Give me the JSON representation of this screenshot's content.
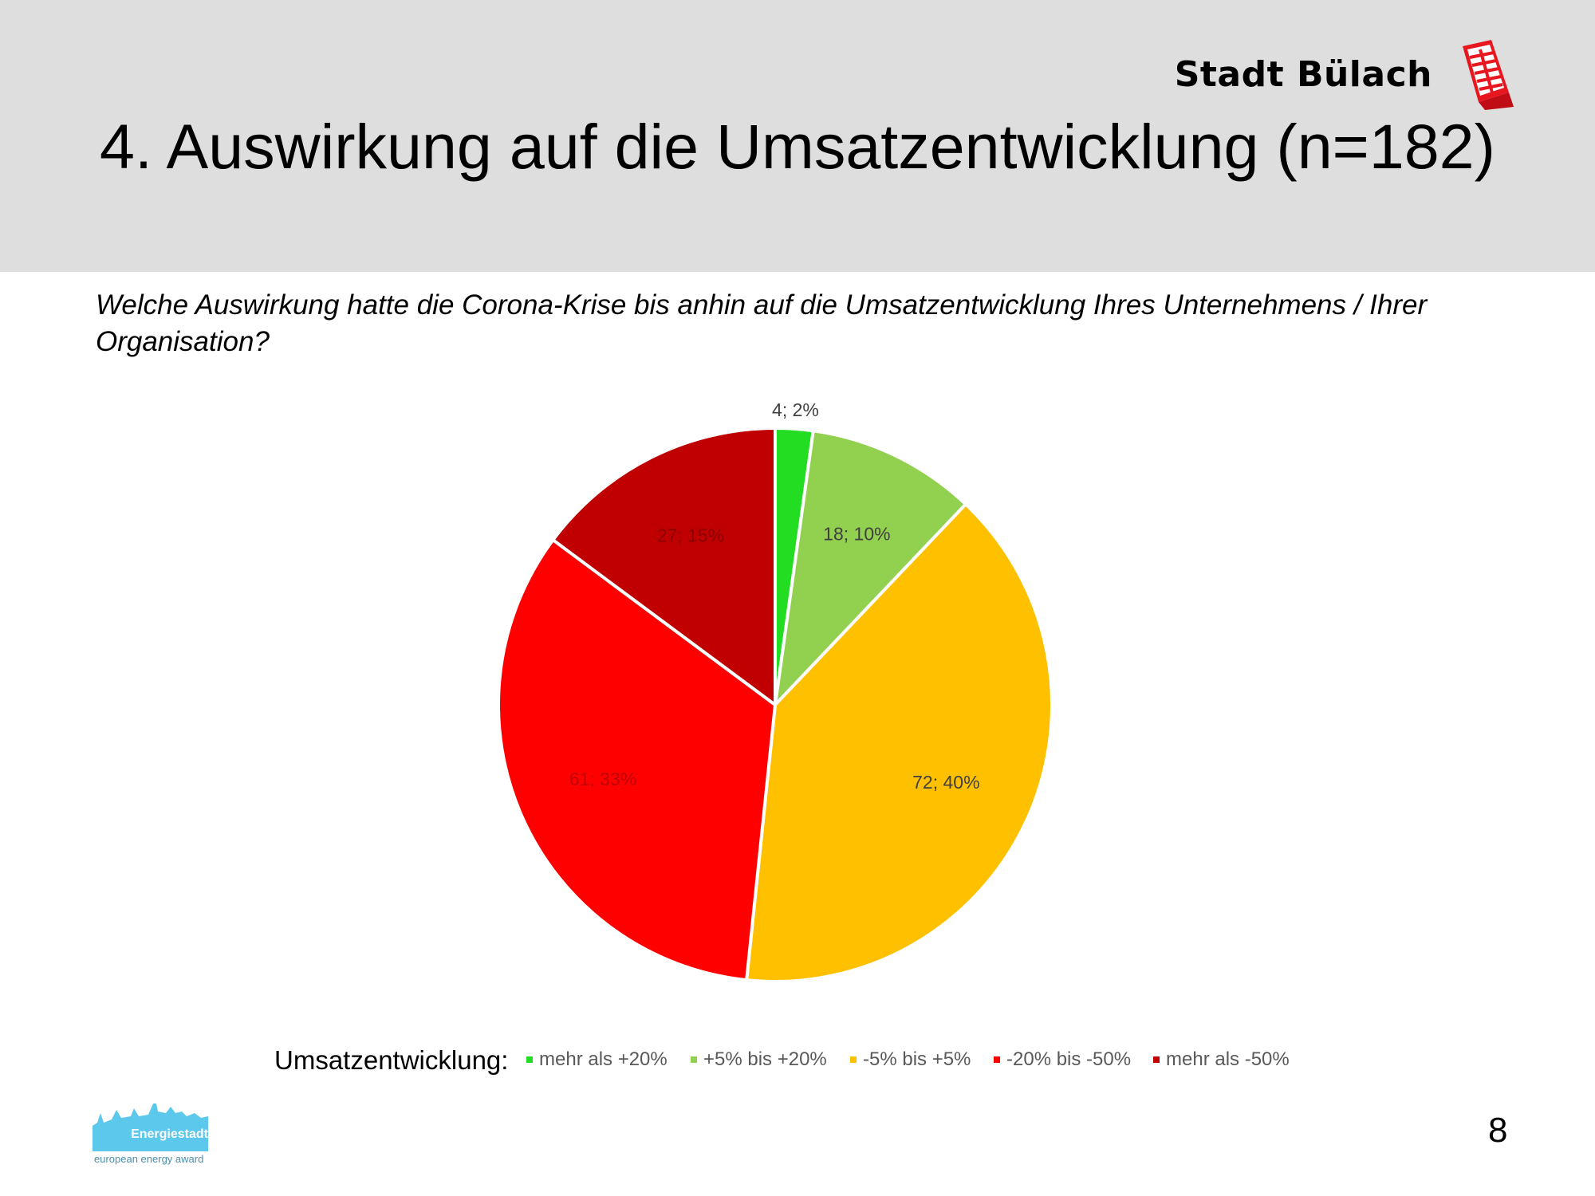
{
  "header": {
    "brand_name": "Stadt Bülach",
    "title": "4. Auswirkung auf die Umsatzentwicklung (n=182)"
  },
  "question": "Welche Auswirkung hatte die Corona-Krise bis anhin auf die Umsatzentwicklung Ihres Unternehmens / Ihrer Organisation?",
  "chart_data": {
    "type": "pie",
    "title": "",
    "categories": [
      "mehr als +20%",
      "+5% bis +20%",
      "-5% bis +5%",
      "-20% bis -50%",
      "mehr als -50%"
    ],
    "values": [
      4,
      18,
      72,
      61,
      27
    ],
    "data_labels": [
      "4; 2%",
      "18; 10%",
      "72; 40%",
      "61; 33%",
      "27; 15%"
    ],
    "colors": [
      "#22dd22",
      "#92d050",
      "#ffc000",
      "#ff0000",
      "#c00000"
    ],
    "legend_title": "Umsatzentwicklung:",
    "legend_position": "bottom",
    "start_angle": "12 o'clock, clockwise"
  },
  "legend": {
    "title": "Umsatzentwicklung:"
  },
  "footer": {
    "logo_text": "Energiestadt",
    "logo_subtext": "european energy award",
    "page_number": "8"
  }
}
